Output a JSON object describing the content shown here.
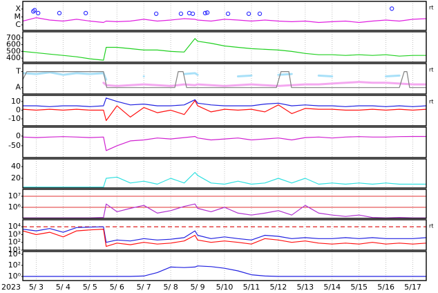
{
  "chart_data": [
    {
      "type": "line",
      "xlim": [
        3,
        18
      ],
      "log": true,
      "ylim": [
        2e-07,
        0.0009
      ],
      "right_label": "rt",
      "xgrid": true,
      "yticks": [
        {
          "value": 0.0001,
          "label": "X"
        },
        {
          "value": 1e-05,
          "label": "M"
        },
        {
          "value": 1e-06,
          "label": "C"
        }
      ],
      "x": [
        3,
        3.5,
        4,
        4.5,
        5,
        5.5,
        6,
        6.1,
        6.5,
        7,
        7.5,
        8,
        8.5,
        9,
        9.4,
        9.5,
        10,
        10.5,
        11,
        11.5,
        12,
        12.5,
        13,
        13.5,
        14,
        14.5,
        15,
        15.5,
        16,
        16.5,
        17,
        17.5,
        18
      ],
      "series": [
        {
          "color": "#e020e0",
          "values": [
            3e-06,
            8e-06,
            4e-06,
            3e-06,
            5e-06,
            3e-06,
            2e-06,
            3e-06,
            2.5e-06,
            3e-06,
            5e-06,
            3e-06,
            4e-06,
            6e-06,
            5e-06,
            4e-06,
            3e-06,
            5e-06,
            4e-06,
            3e-06,
            4e-06,
            3e-06,
            2.5e-06,
            3e-06,
            2e-06,
            2.5e-06,
            3e-06,
            2e-06,
            3e-06,
            4e-06,
            3e-06,
            5e-06,
            6e-06
          ]
        },
        {
          "type": "scatter",
          "color": "#3030ff",
          "x": [
            3.39,
            3.44,
            3.57,
            4.36,
            5.34,
            7.96,
            8.88,
            9.19,
            9.32,
            9.78,
            9.86,
            10.63,
            11.4,
            11.81,
            16.72
          ],
          "values": [
            5e-05,
            7e-05,
            3e-05,
            3e-05,
            3e-05,
            2.5e-05,
            2.5e-05,
            3e-05,
            2.5e-05,
            3e-05,
            3.5e-05,
            2.5e-05,
            2.5e-05,
            2.5e-05,
            0.00011
          ]
        }
      ]
    },
    {
      "type": "line",
      "xlim": [
        3,
        18
      ],
      "ylim": [
        340,
        790
      ],
      "xgrid": true,
      "yticks": [
        700,
        600,
        500,
        400
      ],
      "x": [
        3,
        3.5,
        4,
        4.5,
        5,
        5.5,
        6,
        6.1,
        6.5,
        7,
        7.5,
        8,
        8.5,
        9,
        9.4,
        9.5,
        10,
        10.5,
        11,
        11.5,
        12,
        12.5,
        13,
        13.5,
        14,
        14.5,
        15,
        15.5,
        16,
        16.5,
        17,
        17.5,
        18
      ],
      "series": [
        {
          "color": "#20d020",
          "values": [
            500,
            480,
            460,
            440,
            420,
            390,
            370,
            560,
            560,
            540,
            520,
            520,
            500,
            490,
            690,
            650,
            620,
            580,
            560,
            540,
            530,
            520,
            500,
            470,
            450,
            450,
            440,
            450,
            440,
            450,
            430,
            440,
            440
          ]
        }
      ]
    },
    {
      "type": "line",
      "xlim": [
        3,
        18
      ],
      "ylim": [
        -0.4,
        1.5
      ],
      "right_label": "rt",
      "xgrid": true,
      "yticks": [
        {
          "value": 1,
          "label": "T"
        },
        {
          "value": 0,
          "label": "A"
        }
      ],
      "x": [
        3,
        3.5,
        4,
        4.5,
        5,
        5.5,
        6,
        6.1,
        6.5,
        7,
        7.5,
        8,
        8.5,
        9,
        9.4,
        9.5,
        10,
        10.5,
        11,
        11.5,
        12,
        12.5,
        13,
        13.5,
        14,
        14.5,
        15,
        15.5,
        16,
        16.5,
        17,
        17.5,
        18
      ],
      "series": [
        {
          "color": "#a8e0f8",
          "width": 3,
          "values": [
            0.9,
            0.85,
            0.95,
            0.8,
            0.9,
            0.85,
            0.9,
            0.5,
            null,
            null,
            0.7,
            null,
            null,
            0.85,
            0.9,
            0.8,
            null,
            null,
            0.7,
            0.75,
            null,
            0.8,
            0.85,
            null,
            0.75,
            0.7,
            null,
            null,
            null,
            0.7,
            0.75,
            null,
            null
          ]
        },
        {
          "color": "#f4a8f0",
          "width": 3,
          "values": [
            null,
            null,
            null,
            null,
            null,
            null,
            0.3,
            0.15,
            0.1,
            0.15,
            0.2,
            0.15,
            0.1,
            0.2,
            0.15,
            0.2,
            0.15,
            0.1,
            0.15,
            0.2,
            0.15,
            0.1,
            0.15,
            0.2,
            0.2,
            0.25,
            0.3,
            0.35,
            0.3,
            0.3,
            0.25,
            0.2,
            0.2
          ]
        },
        {
          "color": "#808080",
          "x": [
            3,
            3.15,
            6,
            6.12,
            8.65,
            8.78,
            8.96,
            9.09,
            12.43,
            12.6,
            12.89,
            12.99,
            17,
            17.18,
            17.28,
            17.38,
            18
          ],
          "values": [
            0.5,
            1,
            1,
            0,
            0,
            1,
            1,
            0,
            0,
            1,
            1,
            0,
            0,
            1,
            1,
            0,
            0
          ]
        }
      ]
    },
    {
      "type": "line",
      "xlim": [
        3,
        18
      ],
      "ylim": [
        -18,
        17
      ],
      "right_label": "rt",
      "xgrid": true,
      "yticks": [
        10,
        0,
        -10
      ],
      "x": [
        3,
        3.5,
        4,
        4.5,
        5,
        5.5,
        6,
        6.1,
        6.5,
        7,
        7.5,
        8,
        8.5,
        9,
        9.4,
        9.5,
        10,
        10.5,
        11,
        11.5,
        12,
        12.5,
        13,
        13.5,
        14,
        14.5,
        15,
        15.5,
        16,
        16.5,
        17,
        17.5,
        18
      ],
      "series": [
        {
          "color": "#2020e0",
          "values": [
            5,
            5,
            4,
            5,
            5,
            4,
            5,
            14,
            10,
            6,
            7,
            5,
            5,
            6,
            12,
            8,
            6,
            5,
            5,
            5,
            7,
            8,
            5,
            6,
            5,
            5,
            4,
            5,
            5,
            4,
            5,
            4,
            5
          ]
        },
        {
          "color": "#ff1010",
          "values": [
            1,
            0,
            1,
            0,
            1,
            0,
            0,
            -12,
            5,
            -8,
            3,
            -3,
            0,
            -5,
            11,
            5,
            -2,
            1,
            0,
            1,
            -2,
            6,
            -4,
            2,
            1,
            1,
            0,
            0,
            1,
            0,
            1,
            0,
            1
          ]
        }
      ]
    },
    {
      "type": "line",
      "xlim": [
        3,
        18
      ],
      "ylim": [
        -111,
        46
      ],
      "xgrid": true,
      "yticks": [
        0,
        -50
      ],
      "x": [
        3,
        3.5,
        4,
        4.5,
        5,
        5.5,
        6,
        6.1,
        6.5,
        7,
        7.5,
        8,
        8.5,
        9,
        9.4,
        9.5,
        10,
        10.5,
        11,
        11.5,
        12,
        12.5,
        13,
        13.5,
        14,
        14.5,
        15,
        15.5,
        16,
        16.5,
        17,
        17.5,
        18
      ],
      "series": [
        {
          "color": "#d020d0",
          "values": [
            -5,
            -8,
            -5,
            -3,
            -5,
            -8,
            -5,
            -75,
            -50,
            -25,
            -20,
            -10,
            -15,
            -8,
            -2,
            -10,
            -20,
            -15,
            -10,
            -20,
            -15,
            -10,
            -20,
            -8,
            -5,
            -10,
            -5,
            -3,
            -5,
            -5,
            -3,
            -2,
            -2
          ]
        }
      ]
    },
    {
      "type": "line",
      "xlim": [
        3,
        18
      ],
      "ylim": [
        3.5,
        53
      ],
      "xgrid": true,
      "yticks": [
        40,
        20
      ],
      "x": [
        3,
        3.5,
        4,
        4.5,
        5,
        5.5,
        6,
        6.1,
        6.5,
        7,
        7.5,
        8,
        8.5,
        9,
        9.4,
        9.5,
        10,
        10.5,
        11,
        11.5,
        12,
        12.5,
        13,
        13.5,
        14,
        14.5,
        15,
        15.5,
        16,
        16.5,
        17,
        17.5,
        18
      ],
      "series": [
        {
          "color": "#30e0e0",
          "values": [
            5,
            5,
            5,
            5,
            5,
            5,
            5,
            20,
            22,
            12,
            15,
            10,
            20,
            12,
            30,
            25,
            12,
            10,
            15,
            10,
            12,
            20,
            12,
            20,
            10,
            12,
            10,
            12,
            10,
            12,
            10,
            10,
            10
          ]
        }
      ]
    },
    {
      "type": "line",
      "xlim": [
        3,
        18
      ],
      "log": true,
      "ylim": [
        100000,
        42000000
      ],
      "xgrid": true,
      "grid": true,
      "grid_color": "#e03030",
      "yticks": [
        {
          "value": 10000000,
          "label": "10⁷"
        },
        {
          "value": 1000000,
          "label": "10⁶"
        }
      ],
      "x": [
        3,
        3.5,
        4,
        4.5,
        5,
        5.5,
        6,
        6.1,
        6.5,
        7,
        7.5,
        8,
        8.5,
        9,
        9.4,
        9.5,
        10,
        10.5,
        11,
        11.5,
        12,
        12.5,
        13,
        13.5,
        14,
        14.5,
        15,
        15.5,
        16,
        16.5,
        17,
        17.5,
        18
      ],
      "series": [
        {
          "color": "#b030d0",
          "values": [
            110000,
            110000,
            110000,
            110000,
            110000,
            110000,
            120000,
            2000000,
            400000,
            800000,
            1500000,
            300000,
            500000,
            1200000,
            2000000,
            800000,
            400000,
            1000000,
            300000,
            200000,
            300000,
            500000,
            200000,
            1500000,
            300000,
            200000,
            150000,
            200000,
            120000,
            110000,
            120000,
            110000,
            110000
          ]
        }
      ]
    },
    {
      "type": "line",
      "xlim": [
        3,
        18
      ],
      "log": true,
      "ylim": [
        10,
        80000
      ],
      "right_label": "rt",
      "xgrid": true,
      "threshold": {
        "value": 10000,
        "color": "#e03030"
      },
      "yticks": [
        {
          "value": 10000,
          "label": "10⁴"
        },
        {
          "value": 1000,
          "label": "10³"
        },
        {
          "value": 100,
          "label": "10²"
        },
        {
          "value": 10,
          "label": "10¹"
        }
      ],
      "x": [
        3,
        3.5,
        4,
        4.5,
        5,
        5.5,
        6,
        6.1,
        6.5,
        7,
        7.5,
        8,
        8.5,
        9,
        9.4,
        9.5,
        10,
        10.5,
        11,
        11.5,
        12,
        12.5,
        13,
        13.5,
        14,
        14.5,
        15,
        15.5,
        16,
        16.5,
        17,
        17.5,
        18
      ],
      "series": [
        {
          "color": "#2020e0",
          "values": [
            5000,
            3000,
            6000,
            2000,
            8000,
            9000,
            10000,
            100,
            200,
            150,
            300,
            200,
            250,
            400,
            3000,
            800,
            300,
            500,
            300,
            200,
            800,
            600,
            300,
            400,
            300,
            300,
            400,
            300,
            400,
            300,
            300,
            300,
            400
          ]
        },
        {
          "color": "#ff1010",
          "values": [
            3000,
            1000,
            2000,
            500,
            3000,
            4000,
            5000,
            30,
            80,
            50,
            100,
            60,
            80,
            150,
            800,
            200,
            100,
            150,
            100,
            60,
            300,
            200,
            100,
            150,
            80,
            60,
            80,
            60,
            100,
            60,
            80,
            60,
            80
          ]
        }
      ]
    },
    {
      "type": "line",
      "xlim": [
        3,
        18
      ],
      "log": true,
      "ylim": [
        0.18,
        31600
      ],
      "xgrid": true,
      "xlabel": "2023",
      "yticks": [
        {
          "value": 10000,
          "label": "10⁴"
        },
        {
          "value": 100,
          "label": "10²"
        },
        {
          "value": 1,
          "label": "10⁰"
        }
      ],
      "xticks": [
        {
          "value": 3.5,
          "label": "5/ 3"
        },
        {
          "value": 4.5,
          "label": "5/ 4"
        },
        {
          "value": 5.5,
          "label": "5/ 5"
        },
        {
          "value": 6.5,
          "label": "5/ 6"
        },
        {
          "value": 7.5,
          "label": "5/ 7"
        },
        {
          "value": 8.5,
          "label": "5/ 8"
        },
        {
          "value": 9.5,
          "label": "5/ 9"
        },
        {
          "value": 10.5,
          "label": "5/10"
        },
        {
          "value": 11.5,
          "label": "5/11"
        },
        {
          "value": 12.5,
          "label": "5/12"
        },
        {
          "value": 13.5,
          "label": "5/13"
        },
        {
          "value": 14.5,
          "label": "5/14"
        },
        {
          "value": 15.5,
          "label": "5/15"
        },
        {
          "value": 16.5,
          "label": "5/16"
        },
        {
          "value": 17.5,
          "label": "5/17"
        }
      ],
      "x": [
        3,
        3.5,
        4,
        4.5,
        5,
        5.5,
        6,
        6.1,
        6.5,
        7,
        7.5,
        8,
        8.5,
        9,
        9.4,
        9.5,
        10,
        10.5,
        11,
        11.5,
        12,
        12.5,
        13,
        13.5,
        14,
        14.5,
        15,
        15.5,
        16,
        16.5,
        17,
        17.5,
        18
      ],
      "series": [
        {
          "color": "#2020e0",
          "values": [
            1,
            1,
            1,
            1,
            1,
            1,
            1,
            1,
            1,
            1,
            1.2,
            5,
            50,
            40,
            50,
            80,
            60,
            30,
            10,
            2,
            1.2,
            1,
            1,
            1,
            1,
            1,
            1,
            1,
            1,
            1,
            1,
            1,
            1
          ]
        }
      ]
    }
  ]
}
